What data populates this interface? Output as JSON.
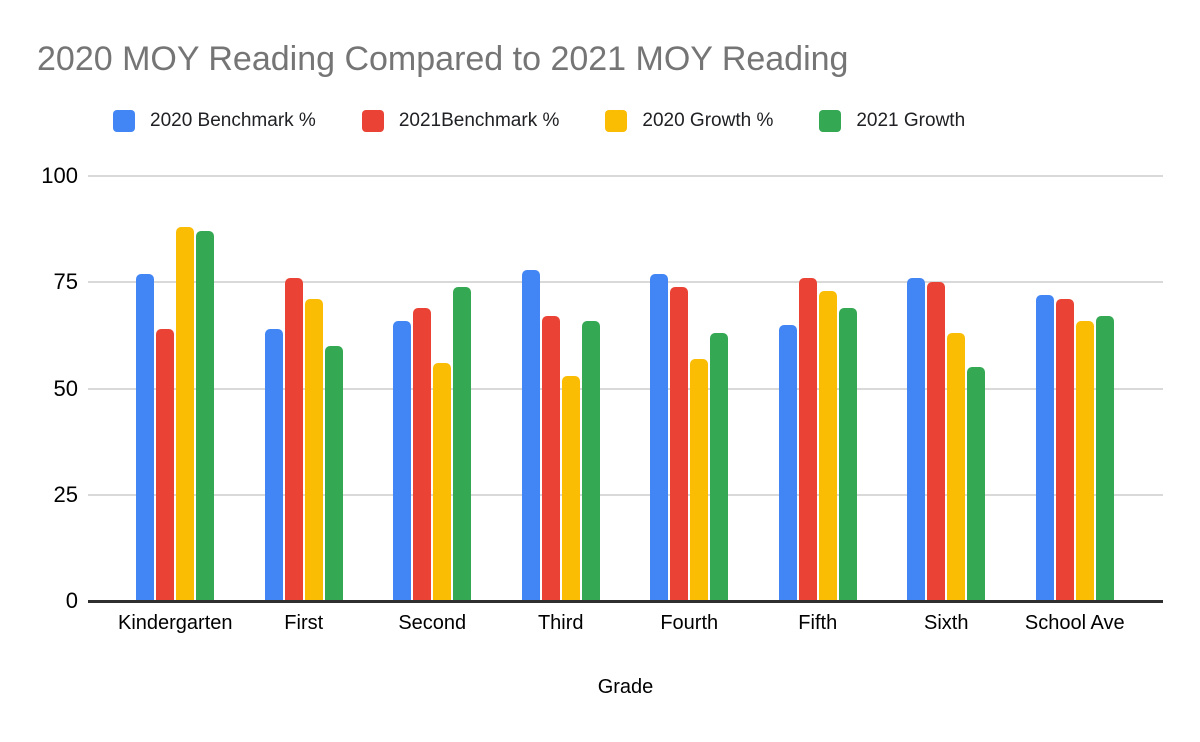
{
  "title": "2020 MOY Reading Compared to 2021 MOY Reading",
  "colors": {
    "background": "#ffffff",
    "title_text": "#757575",
    "axis_text": "#000000",
    "legend_text": "#202124",
    "gridline": "#d9d9d9",
    "axis_line": "#2f2f2f"
  },
  "chart_data": {
    "type": "bar",
    "title": "2020 MOY Reading Compared to 2021 MOY Reading",
    "xlabel": "Grade",
    "ylabel": "",
    "ylim": [
      0,
      100
    ],
    "yticks": [
      0,
      25,
      50,
      75,
      100
    ],
    "grid": true,
    "legend_position": "top",
    "categories": [
      "Kindergarten",
      "First",
      "Second",
      "Third",
      "Fourth",
      "Fifth",
      "Sixth",
      "School Ave"
    ],
    "series": [
      {
        "name": "2020 Benchmark %",
        "color": "#4285F4",
        "values": [
          77,
          64,
          66,
          78,
          77,
          65,
          76,
          72
        ]
      },
      {
        "name": "2021Benchmark %",
        "color": "#EA4335",
        "values": [
          64,
          76,
          69,
          67,
          74,
          76,
          75,
          71
        ]
      },
      {
        "name": "2020 Growth %",
        "color": "#FBBC04",
        "values": [
          88,
          71,
          56,
          53,
          57,
          73,
          63,
          66
        ]
      },
      {
        "name": "2021 Growth",
        "color": "#34A853",
        "values": [
          87,
          60,
          74,
          66,
          63,
          69,
          55,
          67
        ]
      }
    ]
  }
}
